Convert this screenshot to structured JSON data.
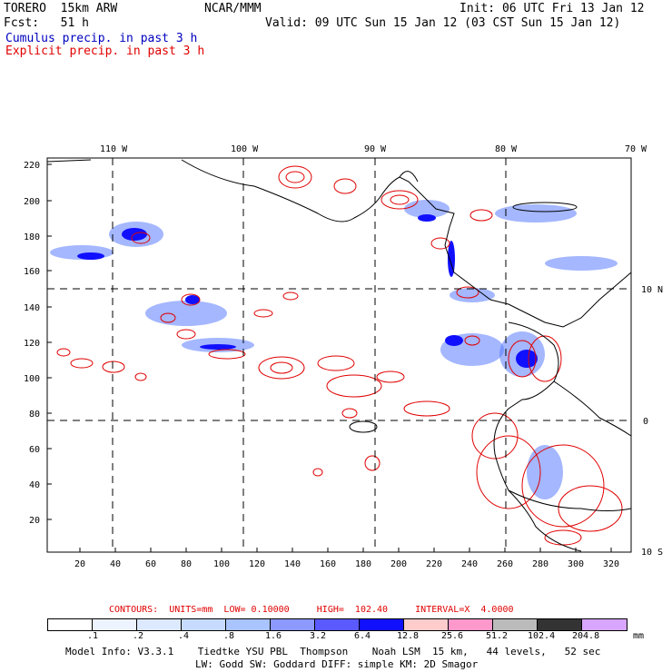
{
  "header": {
    "model": "TORERO",
    "resolution": "15km ARW",
    "org": "NCAR/MMM",
    "init": "Init: 06 UTC Fri 13 Jan 12",
    "fcst_label": "Fcst:",
    "fcst_value": "51 h",
    "valid": "Valid: 09 UTC Sun 15 Jan 12 (03 CST Sun 15 Jan 12)",
    "cumulus": "Cumulus precip. in past 3 h",
    "explicit": "Explicit precip. in past 3 h"
  },
  "axes": {
    "top_lon": [
      "110 W",
      "100 W",
      "90 W",
      "80 W",
      "70 W"
    ],
    "right_lat": [
      "10 N",
      "0",
      "10 S"
    ],
    "y_ticks": [
      "220",
      "200",
      "180",
      "160",
      "140",
      "120",
      "100",
      "80",
      "60",
      "40",
      "20"
    ],
    "x_ticks": [
      "20",
      "40",
      "60",
      "80",
      "100",
      "120",
      "140",
      "160",
      "180",
      "200",
      "220",
      "240",
      "260",
      "280",
      "300",
      "320"
    ]
  },
  "contours": "CONTOURS:  UNITS=mm  LOW= 0.10000     HIGH=  102.40     INTERVAL=X  4.0000",
  "colorbar": {
    "labels": [
      ".1",
      ".2",
      ".4",
      ".8",
      "1.6",
      "3.2",
      "6.4",
      "12.8",
      "25.6",
      "51.2",
      "102.4",
      "204.8"
    ],
    "unit": "mm",
    "colors": [
      "#ffffff",
      "#eef4ff",
      "#dde9ff",
      "#c7dbff",
      "#a9c4ff",
      "#8c99ff",
      "#5a5aff",
      "#1010ff",
      "#ffcccc",
      "#ff99cc",
      "#bbbbbb",
      "#333333",
      "#d9a6ff"
    ]
  },
  "model_info": {
    "line1": "Model Info: V3.3.1    Tiedtke YSU PBL  Thompson    Noah LSM  15 km,   44 levels,   52 sec",
    "line2": "LW: Godd SW: Goddard DIFF: simple KM: 2D Smagor"
  }
}
